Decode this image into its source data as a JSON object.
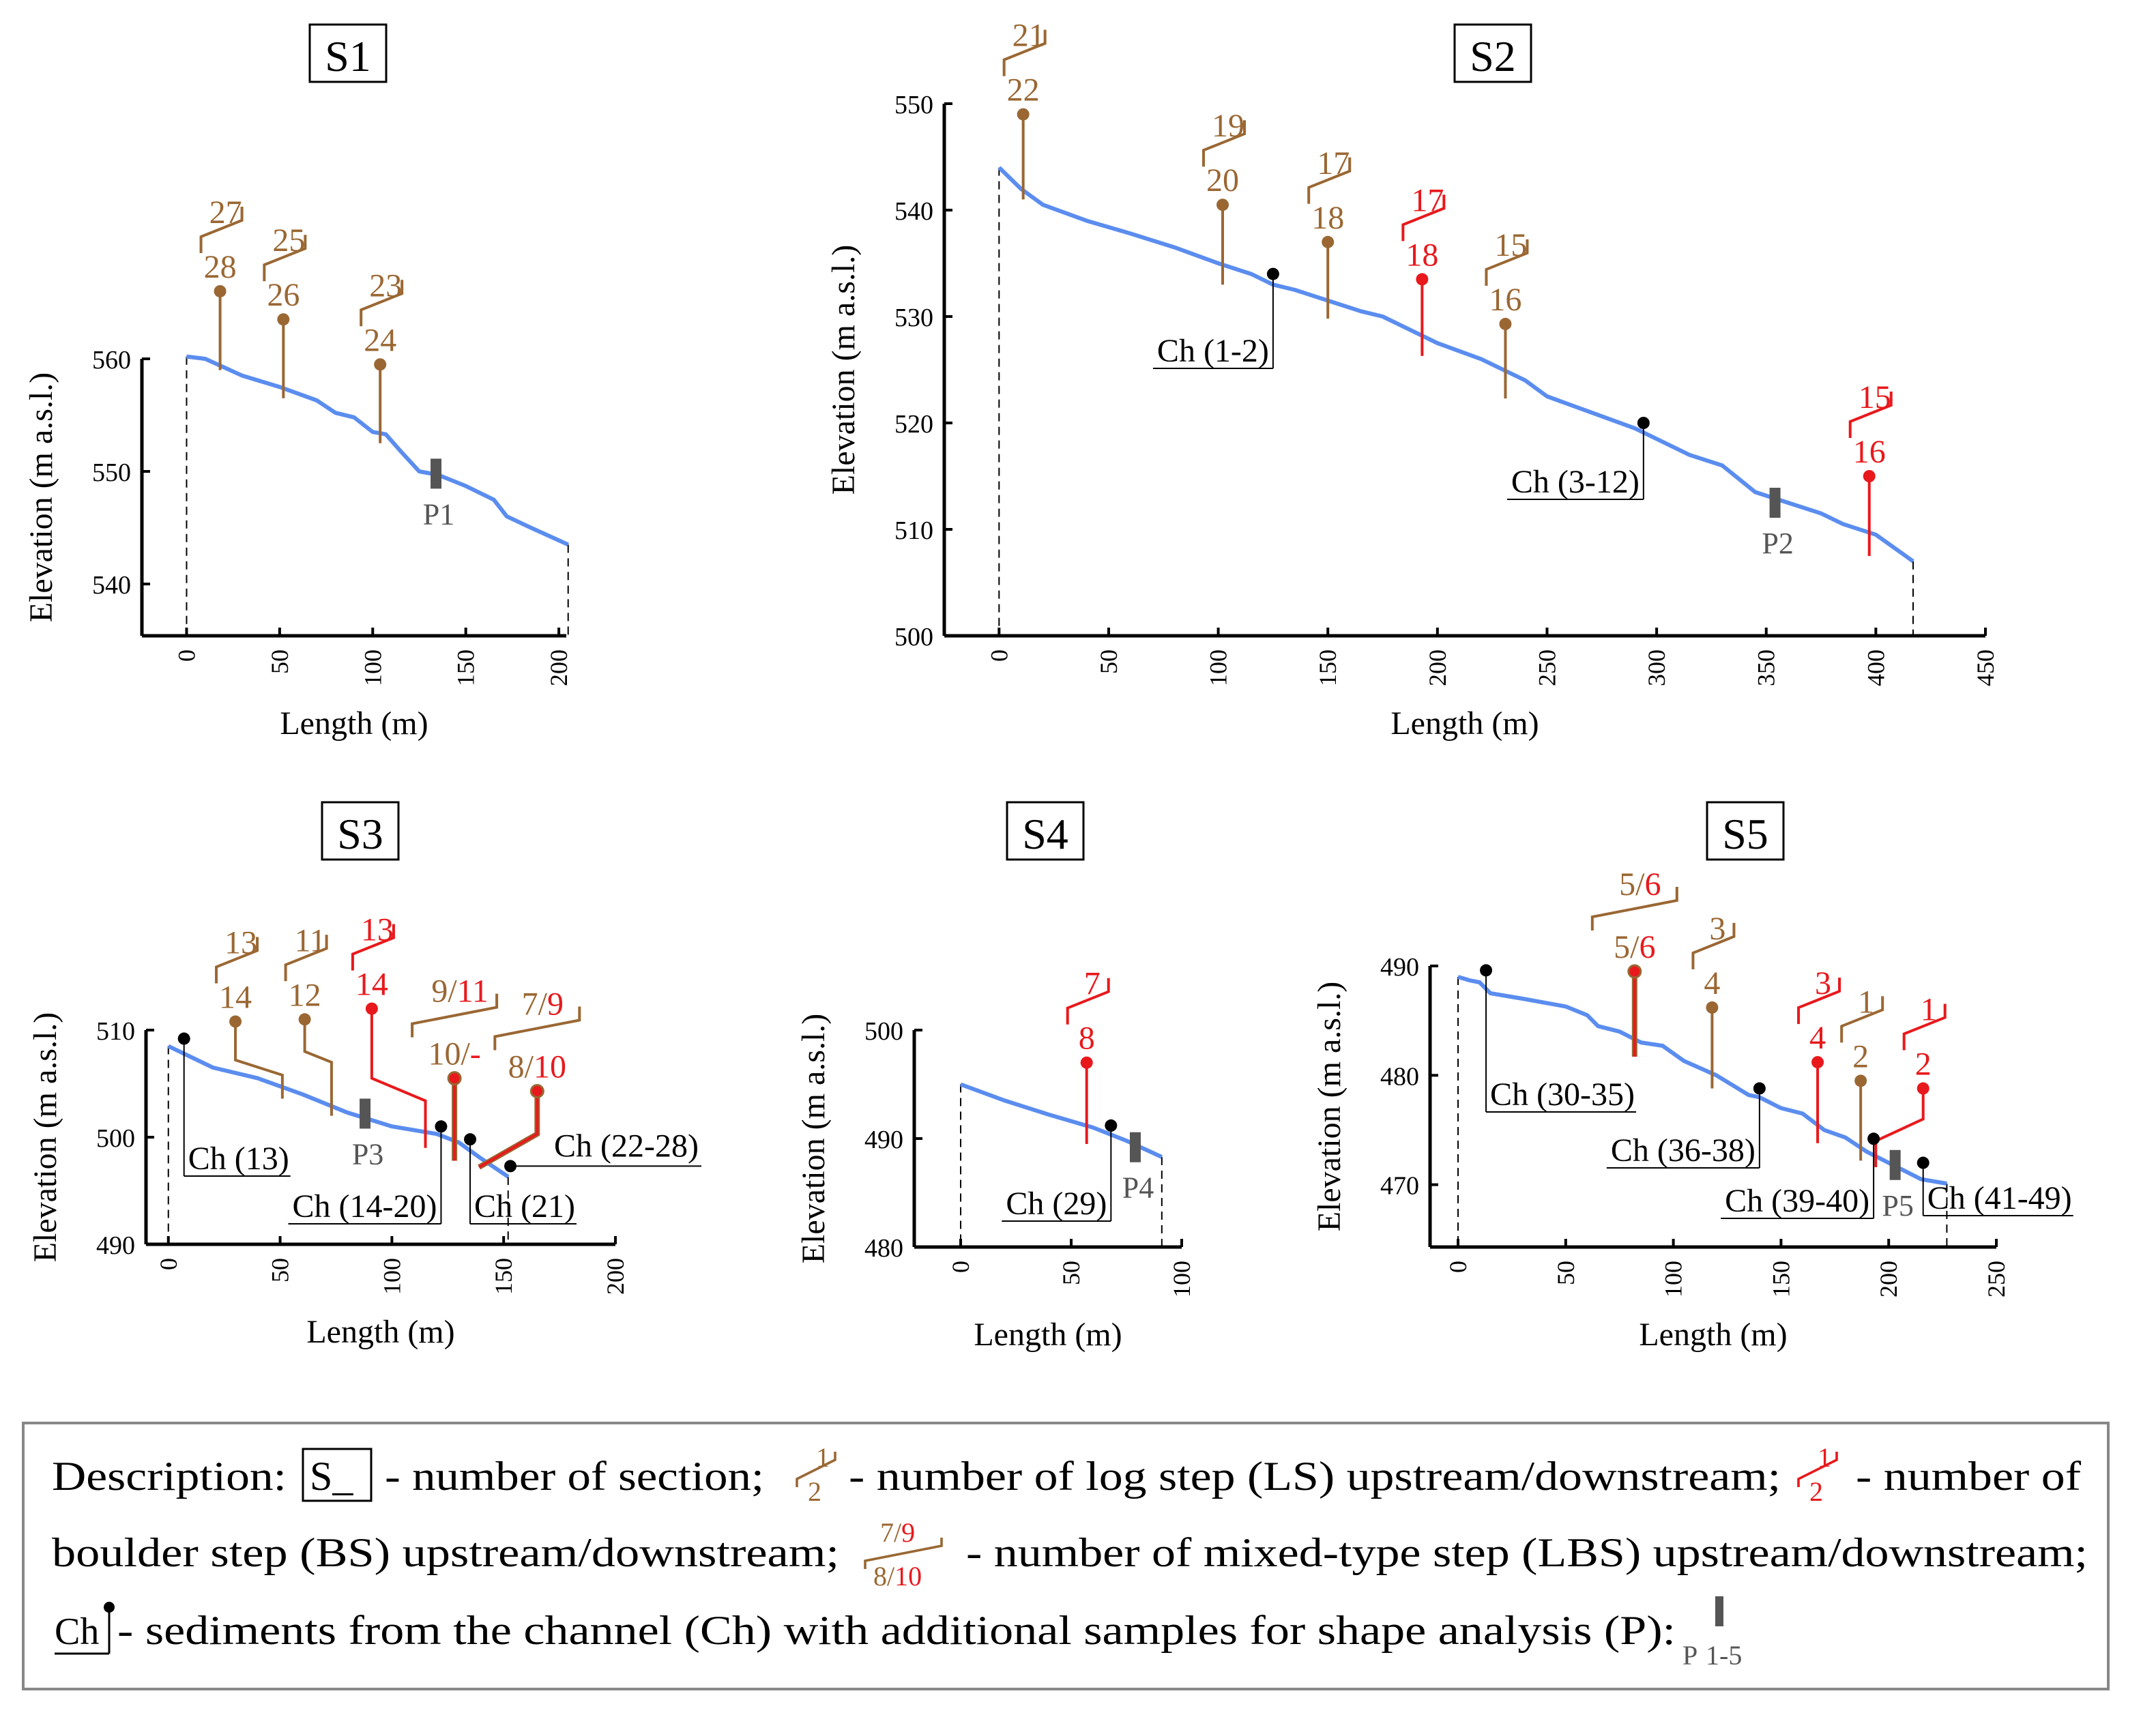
{
  "colors": {
    "log_step": "#9a6733",
    "boulder_step": "#e8191c",
    "profile": "#5b8def",
    "channel": "#000000",
    "shape_sample": "#555555"
  },
  "chart_data": [
    {
      "type": "line",
      "title": "S1",
      "xlabel": "Length (m)",
      "ylabel": "Elevation (m a.s.l.)",
      "xlim": [
        -24,
        204
      ],
      "ylim": [
        535.4,
        560
      ],
      "xticks": [
        0,
        50,
        100,
        150,
        200
      ],
      "yticks": [
        540,
        550,
        560
      ],
      "profile": {
        "x": [
          0,
          10,
          30,
          50,
          70,
          80,
          90,
          100,
          107,
          115,
          125,
          135,
          150,
          165,
          172,
          185,
          205
        ],
        "y": [
          560.2,
          560,
          558.5,
          557.5,
          556.3,
          555.2,
          554.8,
          553.5,
          553.3,
          551.8,
          550,
          549.7,
          548.7,
          547.5,
          546,
          545,
          543.5
        ]
      },
      "steps": [
        {
          "type": "LS",
          "x": 18,
          "top": 566,
          "bottom": 559,
          "up": "27",
          "down": "28"
        },
        {
          "type": "LS",
          "x": 52,
          "top": 563.5,
          "bottom": 556.5,
          "up": "25",
          "down": "26"
        },
        {
          "type": "LS",
          "x": 104,
          "top": 559.5,
          "bottom": 552.5,
          "up": "23",
          "down": "24"
        }
      ],
      "channel_samples": [],
      "shape_sample": {
        "label": "P1",
        "x": 134,
        "y": 549.8
      }
    },
    {
      "type": "line",
      "title": "S2",
      "xlabel": "Length (m)",
      "ylabel": "Elevation (m a.s.l.)",
      "xlim": [
        -25,
        450
      ],
      "ylim": [
        500,
        550
      ],
      "xticks": [
        0,
        50,
        100,
        150,
        200,
        250,
        300,
        350,
        400,
        450
      ],
      "yticks": [
        500,
        510,
        520,
        530,
        540,
        550
      ],
      "profile": {
        "x": [
          0,
          10,
          20,
          40,
          60,
          80,
          100,
          115,
          125,
          135,
          150,
          165,
          175,
          190,
          200,
          220,
          240,
          250,
          270,
          290,
          300,
          315,
          330,
          345,
          360,
          375,
          385,
          400,
          417
        ],
        "y": [
          544,
          542,
          540.5,
          539,
          537.8,
          536.5,
          535,
          534,
          533,
          532.5,
          531.5,
          530.5,
          530,
          528.5,
          527.5,
          526,
          524,
          522.5,
          521,
          519.5,
          518.5,
          517,
          516,
          513.5,
          512.5,
          511.5,
          510.5,
          509.5,
          507
        ]
      },
      "steps": [
        {
          "type": "LS",
          "x": 11,
          "top": 549,
          "bottom": 541,
          "up": "21",
          "down": "22"
        },
        {
          "type": "LS",
          "x": 102,
          "top": 540.5,
          "bottom": 533,
          "up": "19",
          "down": "20"
        },
        {
          "type": "LS",
          "x": 150,
          "top": 537,
          "bottom": 529.8,
          "up": "17",
          "down": "18"
        },
        {
          "type": "BS",
          "x": 193,
          "top": 533.5,
          "bottom": 526.3,
          "up": "17",
          "down": "18"
        },
        {
          "type": "LS",
          "x": 231,
          "top": 529.3,
          "bottom": 522.3,
          "up": "15",
          "down": "16"
        },
        {
          "type": "BS",
          "x": 397,
          "top": 515,
          "bottom": 507.5,
          "up": "15",
          "down": "16"
        }
      ],
      "channel_samples": [
        {
          "x": 125,
          "y": 534,
          "label": "Ch (1-2)"
        },
        {
          "x": 294,
          "y": 520,
          "label": "Ch (3-12)"
        }
      ],
      "shape_sample": {
        "label": "P2",
        "x": 354,
        "y": 512.5
      }
    },
    {
      "type": "line",
      "title": "S3",
      "xlabel": "Length (m)",
      "ylabel": "Elevation (m a.s.l.)",
      "xlim": [
        -10,
        200
      ],
      "ylim": [
        490,
        510
      ],
      "xticks": [
        0,
        50,
        100,
        150,
        200
      ],
      "yticks": [
        490,
        500,
        510
      ],
      "profile": {
        "x": [
          0,
          20,
          40,
          60,
          80,
          100,
          120,
          130,
          140,
          152
        ],
        "y": [
          508.5,
          506.5,
          505.5,
          504,
          502.3,
          501,
          500.3,
          499.5,
          498,
          496.3
        ]
      },
      "steps": [
        {
          "type": "LS",
          "x": 30,
          "top": 510.8,
          "bottom": 503.6,
          "up": "13",
          "down": "14",
          "path": [
            [
              30,
              510.8
            ],
            [
              30,
              507.2
            ],
            [
              51,
              505.8
            ],
            [
              51,
              503.6
            ]
          ]
        },
        {
          "type": "LS",
          "x": 61,
          "top": 511,
          "bottom": 502,
          "up": "11",
          "down": "12",
          "path": [
            [
              61,
              511
            ],
            [
              61,
              508
            ],
            [
              73,
              507
            ],
            [
              73,
              502
            ]
          ]
        },
        {
          "type": "BS",
          "x": 91,
          "top": 512,
          "bottom": 499,
          "up": "13",
          "down": "14",
          "path": [
            [
              91,
              512
            ],
            [
              91,
              505.5
            ],
            [
              115,
              503.4
            ],
            [
              115,
              499
            ]
          ]
        },
        {
          "type": "LBS",
          "x": 128,
          "top": 505.5,
          "bottom": 497.8,
          "up": [
            "9",
            "11"
          ],
          "down": [
            "10",
            "-"
          ]
        },
        {
          "type": "LBS",
          "x": 165,
          "top": 504.3,
          "bottom": 497.2,
          "up": [
            "7",
            "9"
          ],
          "down": [
            "8",
            "10"
          ],
          "path": [
            [
              165,
              504.3
            ],
            [
              165,
              500.3
            ],
            [
              139,
              497.2
            ]
          ]
        }
      ],
      "channel_samples": [
        {
          "x": 7,
          "y": 509.2,
          "label": "Ch (13)"
        },
        {
          "x": 122,
          "y": 501,
          "label": "Ch (14-20)"
        },
        {
          "x": 135,
          "y": 499.8,
          "label": "Ch (21)"
        },
        {
          "x": 153,
          "y": 497.3,
          "label": "Ch (22-28)"
        }
      ],
      "shape_sample": {
        "label": "P3",
        "x": 88,
        "y": 502.2
      }
    },
    {
      "type": "line",
      "title": "S4",
      "xlabel": "Length (m)",
      "ylabel": "Elevation (m a.s.l.)",
      "xlim": [
        -21,
        100
      ],
      "ylim": [
        480,
        500
      ],
      "xticks": [
        0,
        50,
        100
      ],
      "yticks": [
        480,
        490,
        500
      ],
      "profile": {
        "x": [
          0,
          20,
          40,
          60,
          75,
          91
        ],
        "y": [
          495,
          493.5,
          492.2,
          491,
          489.8,
          488.3
        ]
      },
      "steps": [
        {
          "type": "BS",
          "x": 57,
          "top": 497,
          "bottom": 489.5,
          "up": "7",
          "down": "8"
        }
      ],
      "channel_samples": [
        {
          "x": 68,
          "y": 491.2,
          "label": "Ch (29)"
        }
      ],
      "shape_sample": {
        "label": "P4",
        "x": 79,
        "y": 489.2
      }
    },
    {
      "type": "line",
      "title": "S5",
      "xlabel": "Length (m)",
      "ylabel": "Elevation (m a.s.l.)",
      "xlim": [
        -13,
        250
      ],
      "ylim": [
        464.3,
        490
      ],
      "xticks": [
        0,
        50,
        100,
        150,
        200,
        250
      ],
      "yticks": [
        470,
        480,
        490
      ],
      "profile": {
        "x": [
          0,
          5,
          10,
          15,
          30,
          50,
          60,
          65,
          75,
          85,
          95,
          105,
          120,
          135,
          140,
          150,
          160,
          170,
          180,
          190,
          200,
          215,
          227
        ],
        "y": [
          489,
          488.7,
          488.5,
          487.5,
          487,
          486.3,
          485.5,
          484.5,
          484,
          483,
          482.7,
          481.3,
          480,
          478.2,
          478,
          477,
          476.5,
          475,
          474.3,
          473,
          472,
          470.5,
          470.1
        ]
      },
      "steps": [
        {
          "type": "LBS",
          "x": 82,
          "top": 489.5,
          "bottom": 481.7,
          "up": [
            "5",
            "6"
          ],
          "down": [
            "5",
            "6"
          ]
        },
        {
          "type": "LS",
          "x": 118,
          "top": 486.2,
          "bottom": 478.8,
          "up": "3",
          "down": "4"
        },
        {
          "type": "BS",
          "x": 167,
          "top": 481.2,
          "bottom": 473.8,
          "up": "3",
          "down": "4"
        },
        {
          "type": "LS",
          "x": 187,
          "top": 479.5,
          "bottom": 472.2,
          "up": "1",
          "down": "2"
        },
        {
          "type": "BS",
          "x": 216,
          "top": 478.8,
          "bottom": 471.6,
          "up": "1",
          "down": "2",
          "path": [
            [
              216,
              478.8
            ],
            [
              216,
              476
            ],
            [
              194,
              474
            ],
            [
              194,
              471.6
            ]
          ]
        }
      ],
      "channel_samples": [
        {
          "x": 13,
          "y": 489.6,
          "label": "Ch (30-35)"
        },
        {
          "x": 140,
          "y": 478.8,
          "label": "Ch (36-38)"
        },
        {
          "x": 193,
          "y": 474.2,
          "label": "Ch (39-40)"
        },
        {
          "x": 216,
          "y": 472,
          "label": "Ch (41-49)"
        }
      ],
      "shape_sample": {
        "label": "P5",
        "x": 203,
        "y": 471.8
      }
    }
  ],
  "legend": {
    "description": "Description:",
    "section_symbol": "S_",
    "section_text": "- number of section;",
    "ls_up": "1",
    "ls_down": "2",
    "ls_text": "- number of log step (LS) upstream/downstream;",
    "bs_up": "1",
    "bs_down": "2",
    "bs_text_1": "- number of",
    "bs_text_2": "boulder step (BS) upstream/downstream;",
    "lbs_up": [
      "7",
      "9"
    ],
    "lbs_down": [
      "8",
      "10"
    ],
    "lbs_text": "- number of mixed-type step (LBS) upstream/downstream;",
    "ch_symbol": "Ch",
    "ch_text": "- sediments from the channel (Ch) with additional samples for shape analysis (P):",
    "p_symbol": "P",
    "p_range": "1-5"
  }
}
